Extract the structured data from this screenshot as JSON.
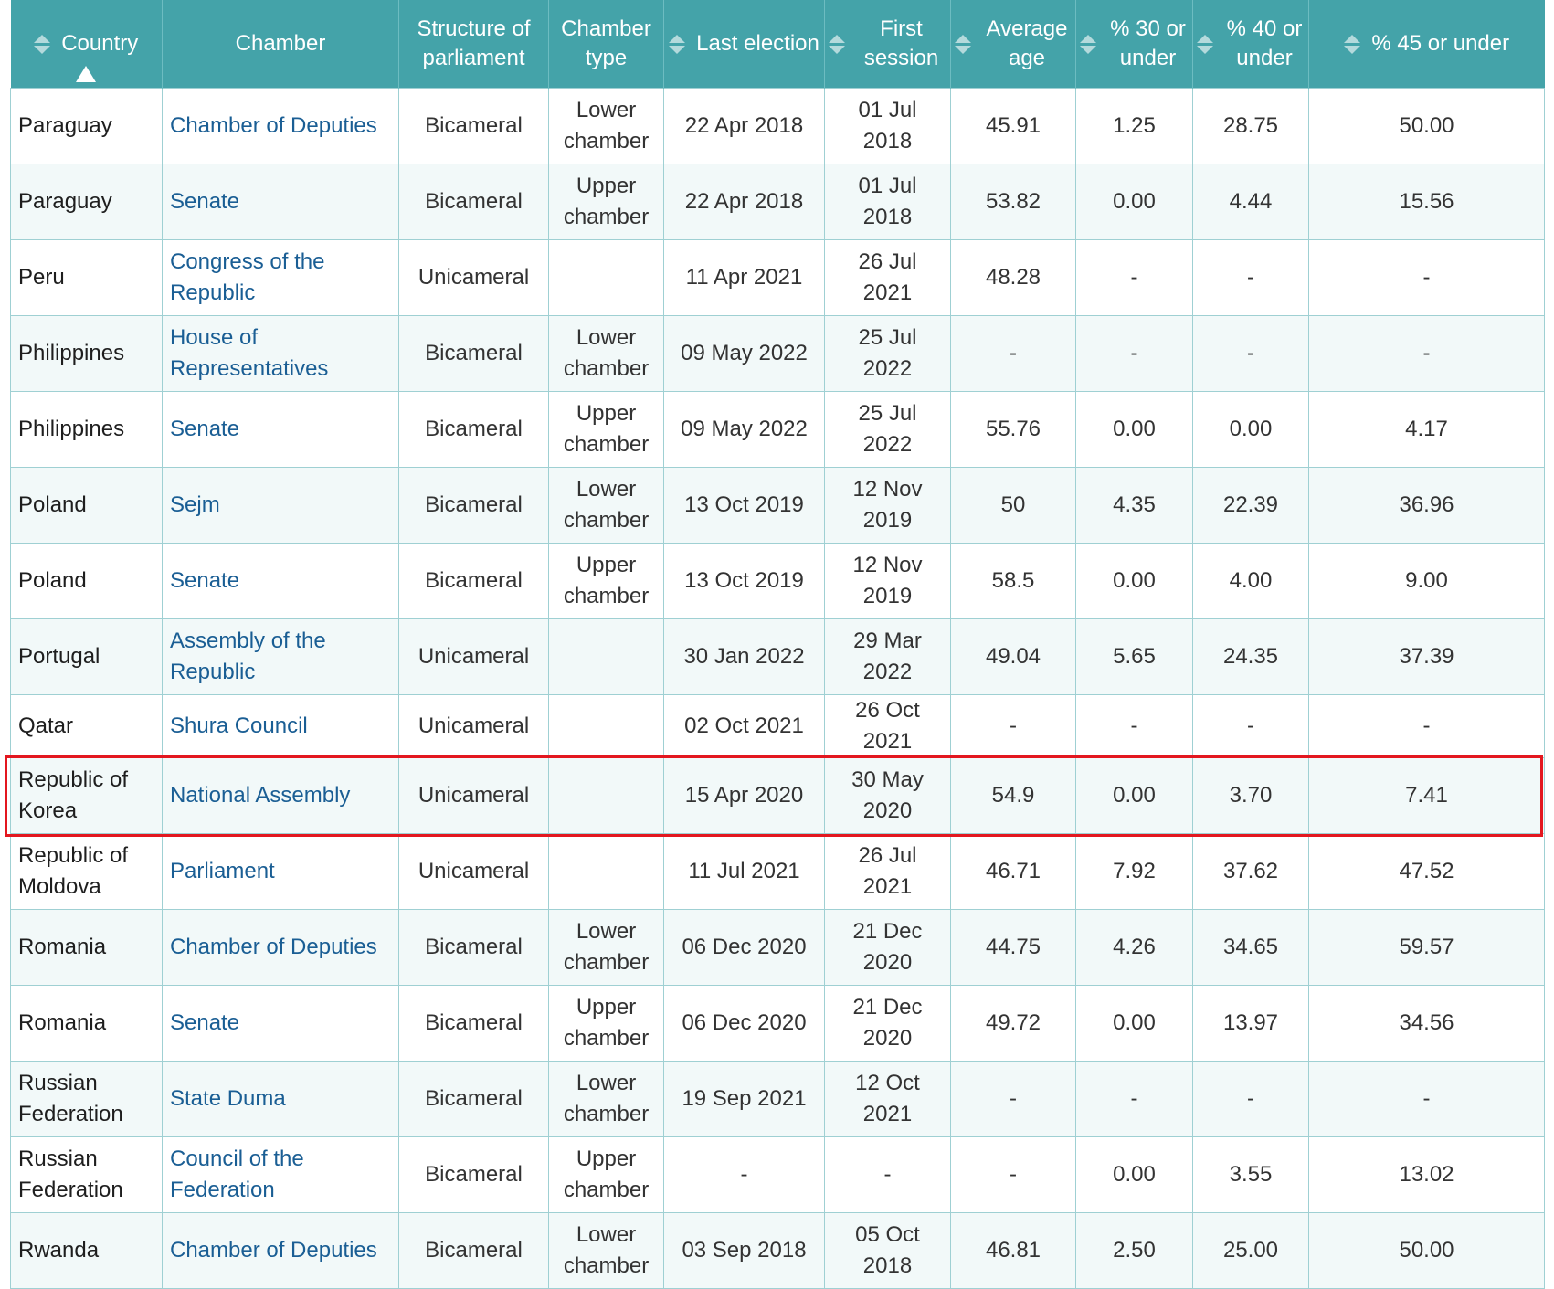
{
  "colors": {
    "header_bg": "#44a3a9",
    "header_text": "#ffffff",
    "link": "#1a5e94",
    "highlight": "#e3171f",
    "row_alt": "#f2f9f9"
  },
  "table": {
    "sort_icon": "sort-icon",
    "active_sort_icon": "sort-ascending-icon",
    "columns": [
      {
        "key": "country",
        "label": "Country",
        "sortable": true,
        "active": true
      },
      {
        "key": "chamber",
        "label": "Chamber",
        "sortable": false
      },
      {
        "key": "structure",
        "label": "Structure of parliament",
        "sortable": false
      },
      {
        "key": "type",
        "label": "Chamber type",
        "sortable": false
      },
      {
        "key": "last_election",
        "label": "Last election",
        "sortable": true
      },
      {
        "key": "first_session",
        "label": "First session",
        "sortable": true
      },
      {
        "key": "avg_age",
        "label": "Average age",
        "sortable": true
      },
      {
        "key": "pct30",
        "label": "% 30 or under",
        "sortable": true
      },
      {
        "key": "pct40",
        "label": "% 40 or under",
        "sortable": true
      },
      {
        "key": "pct45",
        "label": "% 45 or under",
        "sortable": true
      }
    ],
    "rows": [
      {
        "country": "Paraguay",
        "chamber": "Chamber of Deputies",
        "structure": "Bicameral",
        "type": "Lower chamber",
        "last_election": "22 Apr 2018",
        "first_session": "01 Jul 2018",
        "avg_age": "45.91",
        "pct30": "1.25",
        "pct40": "28.75",
        "pct45": "50.00"
      },
      {
        "country": "Paraguay",
        "chamber": "Senate",
        "structure": "Bicameral",
        "type": "Upper chamber",
        "last_election": "22 Apr 2018",
        "first_session": "01 Jul 2018",
        "avg_age": "53.82",
        "pct30": "0.00",
        "pct40": "4.44",
        "pct45": "15.56"
      },
      {
        "country": "Peru",
        "chamber": "Congress of the Republic",
        "structure": "Unicameral",
        "type": "",
        "last_election": "11 Apr 2021",
        "first_session": "26 Jul 2021",
        "avg_age": "48.28",
        "pct30": "-",
        "pct40": "-",
        "pct45": "-"
      },
      {
        "country": "Philippines",
        "chamber": "House of Representatives",
        "structure": "Bicameral",
        "type": "Lower chamber",
        "last_election": "09 May 2022",
        "first_session": "25 Jul 2022",
        "avg_age": "-",
        "pct30": "-",
        "pct40": "-",
        "pct45": "-"
      },
      {
        "country": "Philippines",
        "chamber": "Senate",
        "structure": "Bicameral",
        "type": "Upper chamber",
        "last_election": "09 May 2022",
        "first_session": "25 Jul 2022",
        "avg_age": "55.76",
        "pct30": "0.00",
        "pct40": "0.00",
        "pct45": "4.17"
      },
      {
        "country": "Poland",
        "chamber": "Sejm",
        "structure": "Bicameral",
        "type": "Lower chamber",
        "last_election": "13 Oct 2019",
        "first_session": "12 Nov 2019",
        "avg_age": "50",
        "pct30": "4.35",
        "pct40": "22.39",
        "pct45": "36.96"
      },
      {
        "country": "Poland",
        "chamber": "Senate",
        "structure": "Bicameral",
        "type": "Upper chamber",
        "last_election": "13 Oct 2019",
        "first_session": "12 Nov 2019",
        "avg_age": "58.5",
        "pct30": "0.00",
        "pct40": "4.00",
        "pct45": "9.00"
      },
      {
        "country": "Portugal",
        "chamber": "Assembly of the Republic",
        "structure": "Unicameral",
        "type": "",
        "last_election": "30 Jan 2022",
        "first_session": "29 Mar 2022",
        "avg_age": "49.04",
        "pct30": "5.65",
        "pct40": "24.35",
        "pct45": "37.39"
      },
      {
        "country": "Qatar",
        "chamber": "Shura Council",
        "structure": "Unicameral",
        "type": "",
        "last_election": "02 Oct 2021",
        "first_session": "26 Oct 2021",
        "avg_age": "-",
        "pct30": "-",
        "pct40": "-",
        "pct45": "-"
      },
      {
        "country": "Republic of Korea",
        "chamber": "National Assembly",
        "structure": "Unicameral",
        "type": "",
        "last_election": "15 Apr 2020",
        "first_session": "30 May 2020",
        "avg_age": "54.9",
        "pct30": "0.00",
        "pct40": "3.70",
        "pct45": "7.41",
        "highlighted": true
      },
      {
        "country": "Republic of Moldova",
        "chamber": "Parliament",
        "structure": "Unicameral",
        "type": "",
        "last_election": "11 Jul 2021",
        "first_session": "26 Jul 2021",
        "avg_age": "46.71",
        "pct30": "7.92",
        "pct40": "37.62",
        "pct45": "47.52"
      },
      {
        "country": "Romania",
        "chamber": "Chamber of Deputies",
        "structure": "Bicameral",
        "type": "Lower chamber",
        "last_election": "06 Dec 2020",
        "first_session": "21 Dec 2020",
        "avg_age": "44.75",
        "pct30": "4.26",
        "pct40": "34.65",
        "pct45": "59.57"
      },
      {
        "country": "Romania",
        "chamber": "Senate",
        "structure": "Bicameral",
        "type": "Upper chamber",
        "last_election": "06 Dec 2020",
        "first_session": "21 Dec 2020",
        "avg_age": "49.72",
        "pct30": "0.00",
        "pct40": "13.97",
        "pct45": "34.56"
      },
      {
        "country": "Russian Federation",
        "chamber": "State Duma",
        "structure": "Bicameral",
        "type": "Lower chamber",
        "last_election": "19 Sep 2021",
        "first_session": "12 Oct 2021",
        "avg_age": "-",
        "pct30": "-",
        "pct40": "-",
        "pct45": "-"
      },
      {
        "country": "Russian Federation",
        "chamber": "Council of the Federation",
        "structure": "Bicameral",
        "type": "Upper chamber",
        "last_election": "-",
        "first_session": "-",
        "avg_age": "-",
        "pct30": "0.00",
        "pct40": "3.55",
        "pct45": "13.02"
      },
      {
        "country": "Rwanda",
        "chamber": "Chamber of Deputies",
        "structure": "Bicameral",
        "type": "Lower chamber",
        "last_election": "03 Sep 2018",
        "first_session": "05 Oct 2018",
        "avg_age": "46.81",
        "pct30": "2.50",
        "pct40": "25.00",
        "pct45": "50.00"
      }
    ]
  }
}
